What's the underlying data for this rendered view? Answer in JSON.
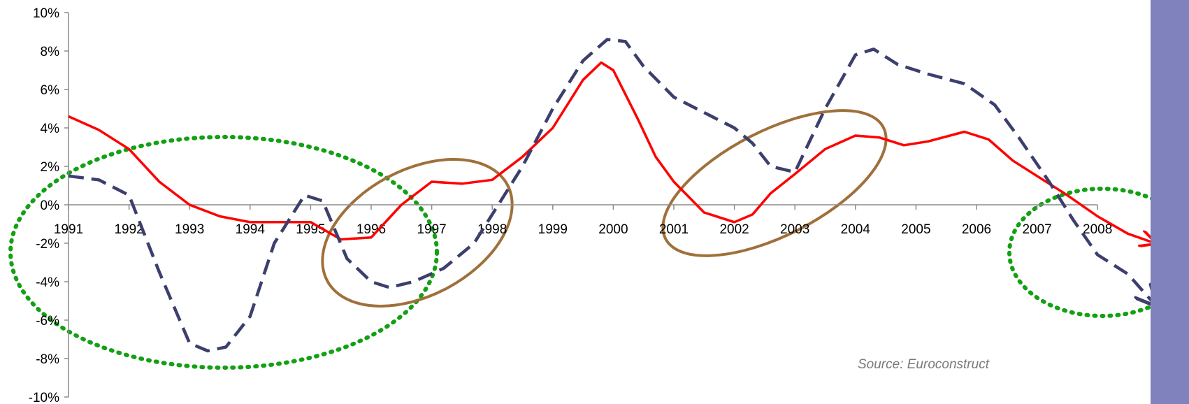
{
  "chart_data": {
    "type": "line",
    "y_tick_labels": [
      "10%",
      "8%",
      "6%",
      "4%",
      "2%",
      "0%",
      "-2%",
      "-4%",
      "-6%",
      "-8%",
      "-10%"
    ],
    "x_tick_labels": [
      "1991",
      "1992",
      "1993",
      "1994",
      "1995",
      "1996",
      "1997",
      "1998",
      "1999",
      "2000",
      "2001",
      "2002",
      "2003",
      "2004",
      "2005",
      "2006",
      "2007",
      "2008"
    ],
    "xlim": [
      1991,
      2008.95
    ],
    "ylim": [
      -10,
      10
    ],
    "grid": false,
    "series": [
      {
        "style": "solid",
        "color": "#ff0000",
        "points": [
          [
            1991,
            4.6
          ],
          [
            1991.5,
            3.9
          ],
          [
            1992,
            2.9
          ],
          [
            1992.5,
            1.2
          ],
          [
            1993,
            0.0
          ],
          [
            1993.5,
            -0.6
          ],
          [
            1994,
            -0.9
          ],
          [
            1994.5,
            -0.9
          ],
          [
            1995,
            -0.9
          ],
          [
            1995.5,
            -1.8
          ],
          [
            1996,
            -1.7
          ],
          [
            1996.5,
            0.0
          ],
          [
            1997,
            1.2
          ],
          [
            1997.5,
            1.1
          ],
          [
            1998,
            1.3
          ],
          [
            1998.5,
            2.5
          ],
          [
            1999,
            4.0
          ],
          [
            1999.5,
            6.5
          ],
          [
            1999.8,
            7.4
          ],
          [
            2000,
            7.0
          ],
          [
            2000.4,
            4.5
          ],
          [
            2000.7,
            2.5
          ],
          [
            2001,
            1.2
          ],
          [
            2001.5,
            -0.4
          ],
          [
            2002,
            -0.9
          ],
          [
            2002.3,
            -0.5
          ],
          [
            2002.6,
            0.6
          ],
          [
            2003,
            1.6
          ],
          [
            2003.5,
            2.9
          ],
          [
            2004,
            3.6
          ],
          [
            2004.4,
            3.5
          ],
          [
            2004.8,
            3.1
          ],
          [
            2005.2,
            3.3
          ],
          [
            2005.8,
            3.8
          ],
          [
            2006.2,
            3.4
          ],
          [
            2006.6,
            2.3
          ],
          [
            2007,
            1.5
          ],
          [
            2007.5,
            0.5
          ],
          [
            2008,
            -0.6
          ],
          [
            2008.5,
            -1.5
          ],
          [
            2008.95,
            -2.0
          ]
        ]
      },
      {
        "style": "dashed",
        "color": "#3c3f6e",
        "points": [
          [
            1991,
            1.5
          ],
          [
            1991.5,
            1.3
          ],
          [
            1992,
            0.5
          ],
          [
            1992.5,
            -3.5
          ],
          [
            1993,
            -7.2
          ],
          [
            1993.3,
            -7.6
          ],
          [
            1993.6,
            -7.4
          ],
          [
            1994,
            -5.8
          ],
          [
            1994.4,
            -2.0
          ],
          [
            1994.9,
            0.5
          ],
          [
            1995.2,
            0.2
          ],
          [
            1995.6,
            -2.8
          ],
          [
            1996,
            -4.0
          ],
          [
            1996.3,
            -4.3
          ],
          [
            1996.7,
            -4.0
          ],
          [
            1997.2,
            -3.3
          ],
          [
            1997.7,
            -2.0
          ],
          [
            1998,
            -0.5
          ],
          [
            1998.5,
            2.0
          ],
          [
            1999,
            5.0
          ],
          [
            1999.5,
            7.5
          ],
          [
            1999.9,
            8.6
          ],
          [
            2000.2,
            8.5
          ],
          [
            2000.5,
            7.2
          ],
          [
            2001,
            5.6
          ],
          [
            2001.5,
            4.8
          ],
          [
            2002,
            4.0
          ],
          [
            2002.3,
            3.2
          ],
          [
            2002.6,
            2.0
          ],
          [
            2003,
            1.7
          ],
          [
            2003.5,
            5.0
          ],
          [
            2004,
            7.8
          ],
          [
            2004.3,
            8.1
          ],
          [
            2004.7,
            7.3
          ],
          [
            2005.2,
            6.8
          ],
          [
            2005.8,
            6.3
          ],
          [
            2006.3,
            5.2
          ],
          [
            2006.7,
            3.5
          ],
          [
            2007.2,
            1.2
          ],
          [
            2007.6,
            -0.8
          ],
          [
            2008,
            -2.6
          ],
          [
            2008.5,
            -3.6
          ],
          [
            2008.95,
            -5.2
          ]
        ]
      }
    ]
  },
  "source_text": "Source: Euroconstruct",
  "colors": {
    "axis": "#8c8c8c",
    "solid_series": "#ff0000",
    "dashed_series": "#3c3f6e",
    "ellipse_dotted": "#13a013",
    "ellipse_solid": "#a0703a",
    "sidebar": "#7f82bd"
  }
}
